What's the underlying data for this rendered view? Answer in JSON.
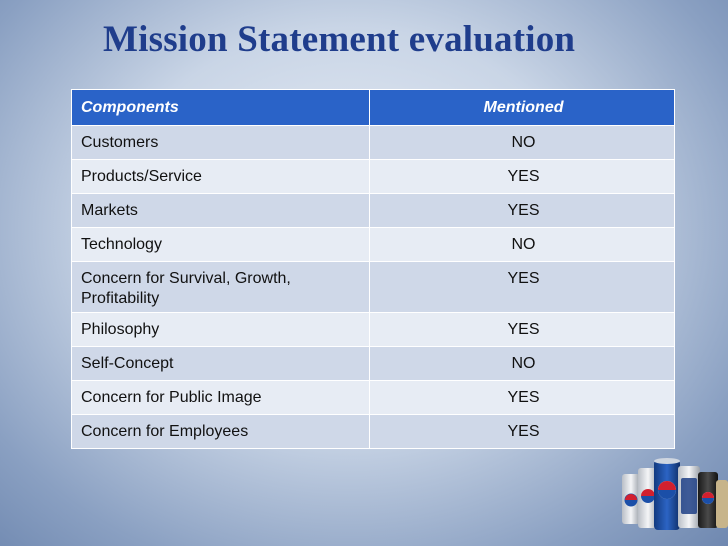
{
  "title": "Mission Statement evaluation",
  "table": {
    "headers": [
      "Components",
      "Mentioned"
    ],
    "rows": [
      {
        "component": "Customers",
        "mentioned": "NO"
      },
      {
        "component": "Products/Service",
        "mentioned": "YES"
      },
      {
        "component": "Markets",
        "mentioned": "YES"
      },
      {
        "component": "Technology",
        "mentioned": "NO"
      },
      {
        "component": "Concern for Survival, Growth, Profitability",
        "mentioned": "YES"
      },
      {
        "component": "Philosophy",
        "mentioned": "YES"
      },
      {
        "component": "Self-Concept",
        "mentioned": "NO"
      },
      {
        "component": "Concern for Public Image",
        "mentioned": "YES"
      },
      {
        "component": "Concern for Employees",
        "mentioned": "YES"
      }
    ]
  },
  "decoration": {
    "image": "pepsi-cans-illustration",
    "colors": {
      "header_blue": "#2a63c8",
      "title_blue": "#1f3d8c",
      "pepsi_blue": "#1b4fa8",
      "pepsi_red": "#d2202f"
    }
  }
}
